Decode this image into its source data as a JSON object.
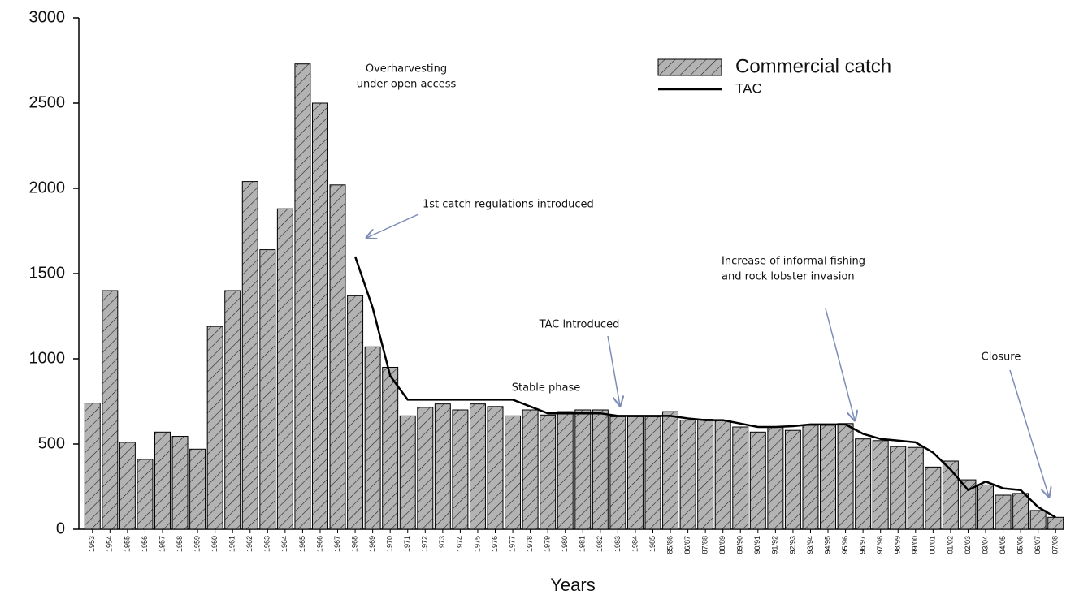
{
  "chart_data": {
    "type": "bar",
    "x_label": "Years",
    "categories": [
      "1953",
      "1954",
      "1955",
      "1956",
      "1957",
      "1958",
      "1959",
      "1960",
      "1961",
      "1962",
      "1963",
      "1964",
      "1965",
      "1966",
      "1967",
      "1968",
      "1969",
      "1970",
      "1971",
      "1972",
      "1973",
      "1974",
      "1975",
      "1976",
      "1977",
      "1978",
      "1979",
      "1980",
      "1981",
      "1982",
      "1983",
      "1984",
      "1985",
      "85/86",
      "86/87",
      "87/88",
      "88/89",
      "89/90",
      "90/91",
      "91/92",
      "92/93",
      "93/94",
      "94/95",
      "95/96",
      "96/97",
      "97/98",
      "98/99",
      "99/00",
      "00/01",
      "01/02",
      "02/03",
      "03/04",
      "04/05",
      "05/06",
      "06/07",
      "07/08"
    ],
    "series": [
      {
        "name": "Commercial catch",
        "kind": "bar",
        "color": "#b3b3b3",
        "values": [
          740,
          1400,
          510,
          410,
          570,
          545,
          470,
          1190,
          1400,
          2040,
          1640,
          1880,
          2730,
          2500,
          2020,
          1370,
          1070,
          950,
          665,
          715,
          735,
          700,
          735,
          720,
          665,
          700,
          670,
          690,
          700,
          700,
          660,
          660,
          660,
          690,
          640,
          645,
          640,
          600,
          570,
          600,
          580,
          610,
          610,
          620,
          530,
          520,
          485,
          480,
          365,
          400,
          290,
          260,
          200,
          210,
          110,
          70
        ]
      },
      {
        "name": "TAC",
        "kind": "line",
        "color": "#000000",
        "values": [
          null,
          null,
          null,
          null,
          null,
          null,
          null,
          null,
          null,
          null,
          null,
          null,
          null,
          null,
          null,
          1600,
          1300,
          900,
          760,
          760,
          760,
          760,
          760,
          760,
          760,
          720,
          680,
          680,
          680,
          680,
          665,
          665,
          665,
          665,
          650,
          640,
          640,
          620,
          600,
          600,
          605,
          615,
          615,
          615,
          560,
          530,
          520,
          510,
          450,
          350,
          230,
          280,
          240,
          230,
          130,
          70
        ]
      }
    ],
    "ylim": [
      0,
      3000
    ],
    "yticks": [
      0,
      500,
      1000,
      1500,
      2000,
      2500,
      3000
    ],
    "legend": "top-right",
    "annotations": [
      {
        "lines": [
          "Overharvesting",
          "under open access"
        ]
      },
      {
        "lines": [
          "1st catch regulations introduced"
        ]
      },
      {
        "lines": [
          "Stable phase"
        ]
      },
      {
        "lines": [
          "TAC introduced"
        ]
      },
      {
        "lines": [
          "Increase of informal fishing",
          "and rock lobster invasion"
        ]
      },
      {
        "lines": [
          "Closure"
        ]
      }
    ]
  }
}
